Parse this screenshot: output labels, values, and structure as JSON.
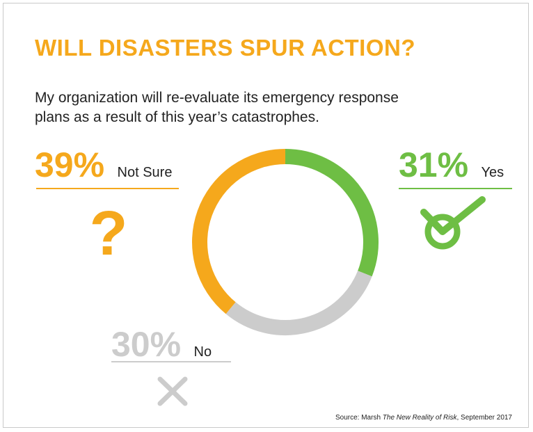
{
  "title": "WILL DISASTERS SPUR ACTION?",
  "subtitle": "My organization will re-evaluate its emergency response plans as a result of this year’s catastrophes.",
  "source": {
    "prefix": "Source: Marsh ",
    "italic": "The New Reality of Risk",
    "suffix": ", September 2017"
  },
  "colors": {
    "yes": "#6ebe44",
    "no": "#cccccc",
    "not_sure": "#f5a81c",
    "text": "#222222"
  },
  "stats": {
    "not_sure": {
      "value": "39%",
      "label": "Not Sure",
      "icon": "question-mark-icon",
      "glyph": "?"
    },
    "yes": {
      "value": "31%",
      "label": "Yes",
      "icon": "check-circle-icon"
    },
    "no": {
      "value": "30%",
      "label": "No",
      "icon": "x-icon"
    }
  },
  "chart_data": {
    "type": "pie",
    "style": "donut",
    "title": "WILL DISASTERS SPUR ACTION?",
    "slices": [
      {
        "name": "Yes",
        "value": 31,
        "color": "#6ebe44"
      },
      {
        "name": "No",
        "value": 30,
        "color": "#cccccc"
      },
      {
        "name": "Not Sure",
        "value": 39,
        "color": "#f5a81c"
      }
    ]
  }
}
